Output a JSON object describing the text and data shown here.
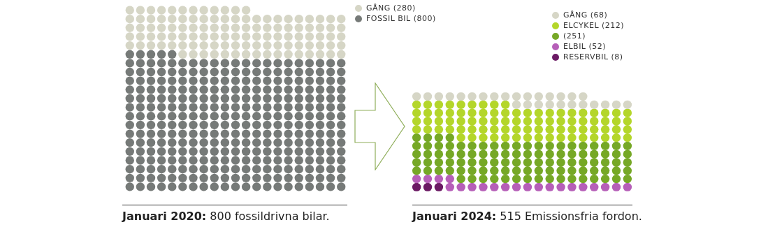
{
  "chart_data": [
    {
      "type": "other",
      "title": "Januari 2020: 800 fossildrivna bilar.",
      "categories": [
        "GÅNG",
        "FOSSIL BIL"
      ],
      "values": [
        280,
        800
      ],
      "value_labels": [
        "(280)",
        "(800)"
      ],
      "colors": [
        "#d6d6c6",
        "#767a78"
      ]
    },
    {
      "type": "other",
      "title": "Januari 2024: 515 Emissionsfria fordon.",
      "categories": [
        "GÅNG",
        "ELCYKEL",
        null,
        "ELBIL",
        "RESERVBIL"
      ],
      "values": [
        68,
        212,
        251,
        52,
        8
      ],
      "value_labels": [
        "(68)",
        "(212)",
        "(251)",
        "(52)",
        "(8)"
      ],
      "colors": [
        "#d6d6c6",
        "#b4d62a",
        "#76a826",
        "#b65fb8",
        "#6b1a64"
      ]
    }
  ]
}
